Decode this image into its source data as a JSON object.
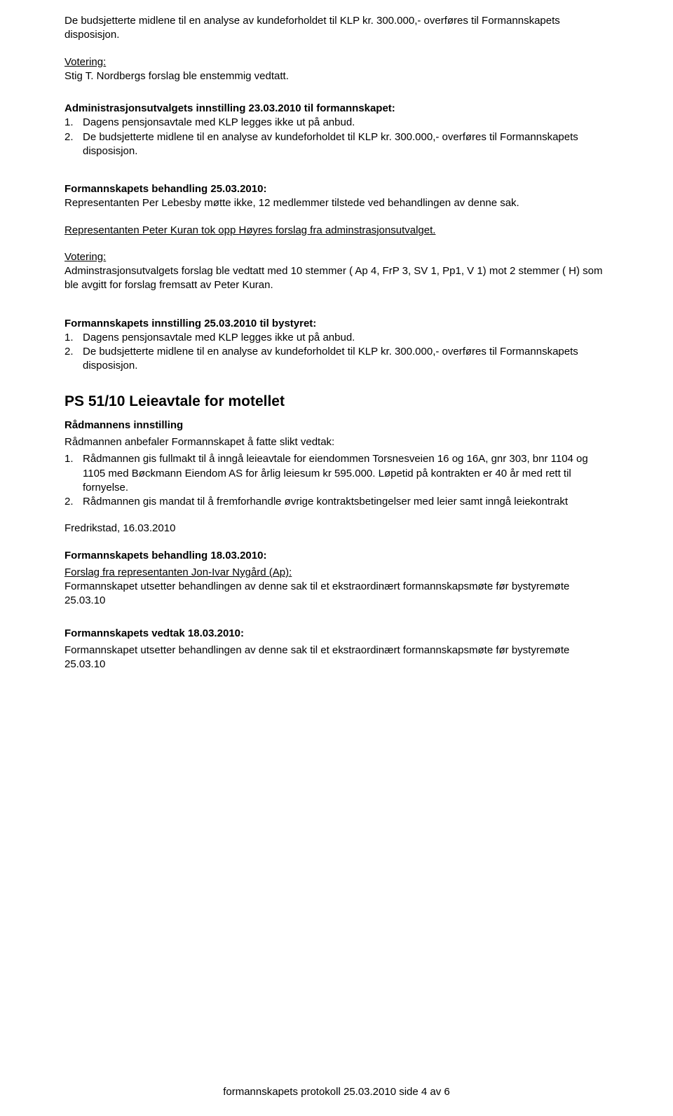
{
  "p1": "De budsjetterte midlene til en analyse av kundeforholdet til KLP kr. 300.000,- overføres til Formannskapets disposisjon.",
  "p2_line1": "Votering:",
  "p2_line2": "Stig T. Nordbergs forslag ble enstemmig vedtatt.",
  "h1": "Administrasjonsutvalgets innstilling 23.03.2010 til formannskapet:",
  "list1": {
    "n1": "1.",
    "t1": "Dagens pensjonsavtale med KLP legges ikke ut på anbud.",
    "n2": "2.",
    "t2": "De budsjetterte midlene til en analyse av kundeforholdet til KLP kr. 300.000,- overføres til Formannskapets disposisjon."
  },
  "h2": "Formannskapets behandling 25.03.2010:",
  "p3": "Representanten Per Lebesby møtte ikke, 12 medlemmer tilstede ved behandlingen av denne sak.",
  "p4": "Representanten Peter Kuran tok opp Høyres forslag fra adminstrasjonsutvalget.",
  "p5_line1": "Votering:",
  "p5_line2": "Adminstrasjonsutvalgets forslag ble vedtatt med 10 stemmer ( Ap 4, FrP 3, SV 1, Pp1, V 1) mot 2 stemmer ( H) som ble avgitt for forslag fremsatt av Peter Kuran.",
  "h3": "Formannskapets innstilling 25.03.2010 til bystyret:",
  "list2": {
    "n1": "1.",
    "t1": "Dagens pensjonsavtale med KLP legges ikke ut på anbud.",
    "n2": "2.",
    "t2": "De budsjetterte midlene til en analyse av kundeforholdet til KLP kr. 300.000,- overføres til Formannskapets disposisjon."
  },
  "h4": "PS 51/10 Leieavtale for motellet",
  "h5": "Rådmannens innstilling",
  "p6": "Rådmannen anbefaler Formannskapet å fatte slikt vedtak:",
  "list3": {
    "n1": "1.",
    "t1": "Rådmannen gis fullmakt til å inngå leieavtale for eiendommen Torsnesveien 16 og 16A, gnr 303, bnr 1104 og 1105 med Bøckmann Eiendom AS for årlig leiesum kr 595.000. Løpetid på kontrakten er 40 år med rett til fornyelse.",
    "n2": "2.",
    "t2": "Rådmannen gis mandat til å fremforhandle øvrige kontraktsbetingelser med leier samt inngå leiekontrakt"
  },
  "p7": "Fredrikstad, 16.03.2010",
  "h6": "Formannskapets behandling 18.03.2010:",
  "p8_line1": "Forslag fra representanten Jon-Ivar Nygård (Ap):",
  "p8_line2": "Formannskapet utsetter behandlingen av denne sak til et ekstraordinært formannskapsmøte før bystyremøte 25.03.10",
  "h7": "Formannskapets vedtak 18.03.2010:",
  "p9": "Formannskapet utsetter behandlingen av denne sak til et ekstraordinært formannskapsmøte før bystyremøte 25.03.10",
  "footer": "formannskapets protokoll 25.03.2010 side 4 av 6"
}
